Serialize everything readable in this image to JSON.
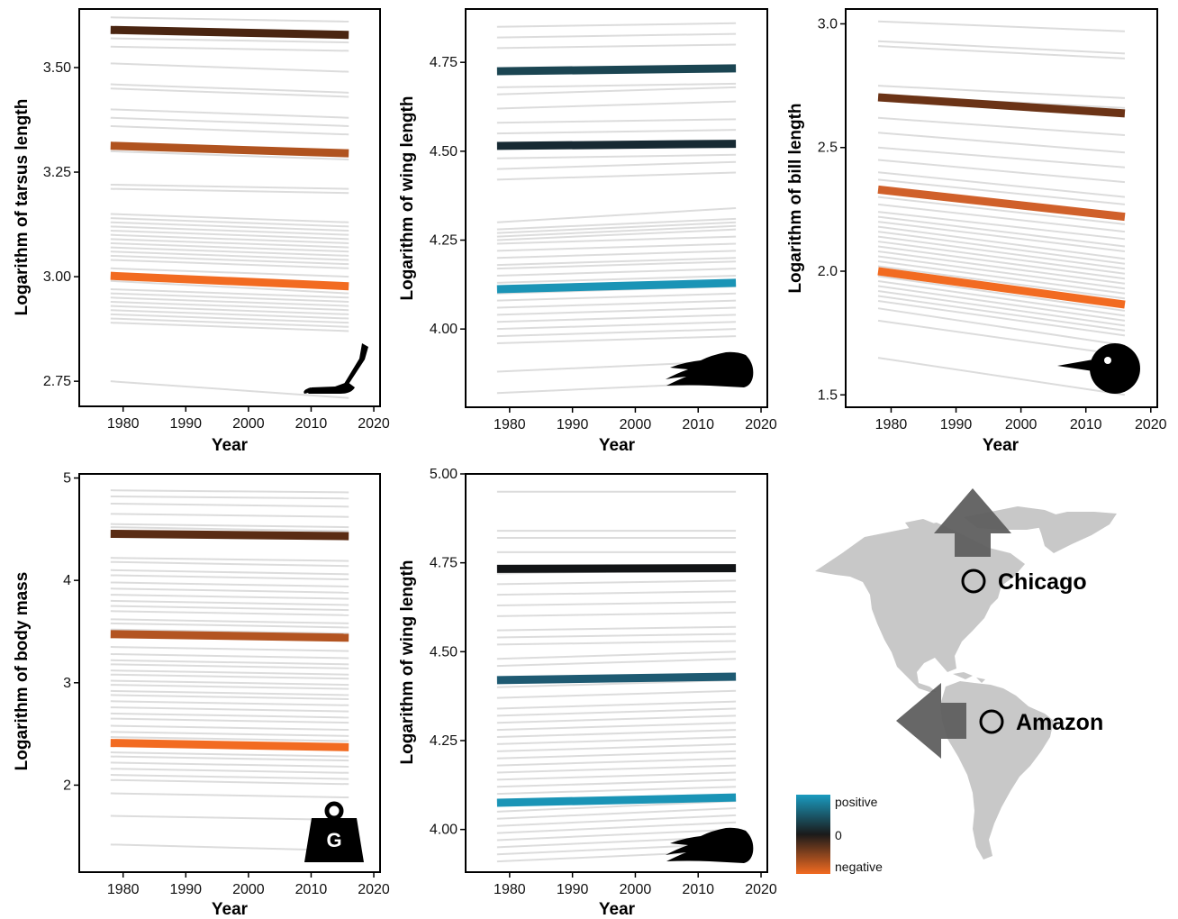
{
  "colors": {
    "background_line": "#dcdcdc",
    "positive": "#1a9bc0",
    "zero": "#1a1a1a",
    "negative": "#f26b21",
    "map_land": "#c8c8c8",
    "arrow": "#5f5f5f"
  },
  "chart_data": [
    {
      "id": "tarsus",
      "type": "line",
      "xlabel": "Year",
      "ylabel": "Logarithm of tarsus length",
      "xlim": [
        1973,
        2021
      ],
      "ylim": [
        2.69,
        3.64
      ],
      "xticks": [
        1980,
        1990,
        2000,
        2010,
        2020
      ],
      "yticks": [
        2.75,
        3.0,
        3.25,
        3.5
      ],
      "ytick_labels": [
        "2.75",
        "3.00",
        "3.25",
        "3.50"
      ],
      "x_range": [
        1978,
        2016
      ],
      "icon": "foot-icon",
      "background_series": {
        "start": [
          3.62,
          3.57,
          3.55,
          3.51,
          3.46,
          3.45,
          3.4,
          3.38,
          3.36,
          3.3,
          3.22,
          3.21,
          3.15,
          3.14,
          3.13,
          3.12,
          3.11,
          3.1,
          3.09,
          3.08,
          3.07,
          3.06,
          3.05,
          3.04,
          3.02,
          3.0,
          2.99,
          2.97,
          2.96,
          2.95,
          2.94,
          2.93,
          2.92,
          2.91,
          2.9,
          2.89,
          2.75
        ],
        "end": [
          3.61,
          3.56,
          3.54,
          3.49,
          3.44,
          3.43,
          3.38,
          3.36,
          3.34,
          3.28,
          3.21,
          3.2,
          3.13,
          3.12,
          3.11,
          3.1,
          3.09,
          3.08,
          3.07,
          3.06,
          3.05,
          3.04,
          3.03,
          3.02,
          3.0,
          2.98,
          2.96,
          2.95,
          2.94,
          2.93,
          2.92,
          2.91,
          2.9,
          2.89,
          2.88,
          2.87,
          2.71
        ]
      },
      "series": [
        {
          "start": 3.59,
          "end": 3.578,
          "color": "#4a2511"
        },
        {
          "start": 3.313,
          "end": 3.295,
          "color": "#b0531f"
        },
        {
          "start": 3.002,
          "end": 2.977,
          "color": "#f26b21"
        }
      ]
    },
    {
      "id": "wing-1",
      "type": "line",
      "xlabel": "Year",
      "ylabel": "Logarithm of wing length",
      "xlim": [
        1973,
        2021
      ],
      "ylim": [
        3.78,
        4.9
      ],
      "xticks": [
        1980,
        1990,
        2000,
        2010,
        2020
      ],
      "yticks": [
        4.0,
        4.25,
        4.5,
        4.75
      ],
      "ytick_labels": [
        "4.00",
        "4.25",
        "4.50",
        "4.75"
      ],
      "x_range": [
        1978,
        2016
      ],
      "icon": "wing-icon",
      "background_series": {
        "start": [
          4.85,
          4.82,
          4.79,
          4.68,
          4.66,
          4.62,
          4.58,
          4.55,
          4.48,
          4.45,
          4.42,
          4.3,
          4.28,
          4.27,
          4.26,
          4.25,
          4.24,
          4.22,
          4.2,
          4.18,
          4.17,
          4.15,
          4.13,
          4.1,
          4.08,
          4.06,
          4.04,
          4.02,
          4.0,
          3.98,
          3.96,
          3.88,
          3.82
        ],
        "end": [
          4.86,
          4.83,
          4.8,
          4.69,
          4.68,
          4.64,
          4.59,
          4.56,
          4.49,
          4.47,
          4.44,
          4.34,
          4.31,
          4.3,
          4.29,
          4.28,
          4.26,
          4.24,
          4.22,
          4.2,
          4.19,
          4.17,
          4.15,
          4.12,
          4.1,
          4.08,
          4.06,
          4.04,
          4.02,
          4.0,
          3.98,
          3.91,
          3.85
        ]
      },
      "series": [
        {
          "start": 4.725,
          "end": 4.733,
          "color": "#1b4552"
        },
        {
          "start": 4.515,
          "end": 4.521,
          "color": "#172a33"
        },
        {
          "start": 4.112,
          "end": 4.13,
          "color": "#1a94b6"
        }
      ]
    },
    {
      "id": "bill",
      "type": "line",
      "xlabel": "Year",
      "ylabel": "Logarithm of bill length",
      "xlim": [
        1973,
        2021
      ],
      "ylim": [
        1.45,
        3.06
      ],
      "xticks": [
        1980,
        1990,
        2000,
        2010,
        2020
      ],
      "yticks": [
        1.5,
        2.0,
        2.5,
        3.0
      ],
      "ytick_labels": [
        "1.5",
        "2.0",
        "2.5",
        "3.0"
      ],
      "x_range": [
        1978,
        2016
      ],
      "icon": "bird-head-icon",
      "background_series": {
        "start": [
          3.01,
          2.93,
          2.91,
          2.75,
          2.71,
          2.62,
          2.56,
          2.5,
          2.45,
          2.4,
          2.37,
          2.33,
          2.3,
          2.27,
          2.24,
          2.22,
          2.2,
          2.18,
          2.16,
          2.14,
          2.12,
          2.1,
          2.08,
          2.06,
          2.04,
          2.02,
          1.98,
          1.96,
          1.94,
          1.92,
          1.9,
          1.88,
          1.85,
          1.8,
          1.65
        ],
        "end": [
          2.97,
          2.88,
          2.86,
          2.7,
          2.66,
          2.55,
          2.48,
          2.42,
          2.36,
          2.3,
          2.27,
          2.22,
          2.19,
          2.16,
          2.13,
          2.1,
          2.08,
          2.05,
          2.03,
          2.01,
          1.99,
          1.97,
          1.95,
          1.93,
          1.91,
          1.89,
          1.84,
          1.82,
          1.8,
          1.78,
          1.76,
          1.74,
          1.7,
          1.66,
          1.5
        ]
      },
      "series": [
        {
          "start": 2.703,
          "end": 2.638,
          "color": "#6b3316"
        },
        {
          "start": 2.33,
          "end": 2.22,
          "color": "#d0602a"
        },
        {
          "start": 2.0,
          "end": 1.865,
          "color": "#f26b21"
        }
      ]
    },
    {
      "id": "mass",
      "type": "line",
      "xlabel": "Year",
      "ylabel": "Logarithm of body mass",
      "xlim": [
        1973,
        2021
      ],
      "ylim": [
        1.15,
        5.04
      ],
      "xticks": [
        1980,
        1990,
        2000,
        2010,
        2020
      ],
      "yticks": [
        2,
        3,
        4,
        5
      ],
      "ytick_labels": [
        "2",
        "3",
        "4",
        "5"
      ],
      "x_range": [
        1978,
        2016
      ],
      "icon": "weight-icon",
      "icon_label": "G",
      "background_series": {
        "start": [
          4.88,
          4.82,
          4.75,
          4.65,
          4.55,
          4.52,
          4.22,
          4.18,
          4.1,
          4.05,
          3.98,
          3.92,
          3.86,
          3.8,
          3.75,
          3.7,
          3.62,
          3.58,
          3.52,
          3.35,
          3.28,
          3.22,
          3.18,
          3.12,
          3.08,
          3.02,
          2.98,
          2.92,
          2.88,
          2.82,
          2.76,
          2.7,
          2.65,
          2.58,
          2.52,
          2.47,
          2.32,
          2.28,
          2.22,
          2.16,
          2.1,
          2.05,
          1.92,
          1.7,
          1.42
        ],
        "end": [
          4.86,
          4.8,
          4.72,
          4.62,
          4.52,
          4.48,
          4.19,
          4.14,
          4.06,
          4.01,
          3.94,
          3.88,
          3.82,
          3.76,
          3.71,
          3.66,
          3.58,
          3.54,
          3.48,
          3.31,
          3.24,
          3.18,
          3.14,
          3.08,
          3.04,
          2.98,
          2.94,
          2.88,
          2.84,
          2.78,
          2.72,
          2.66,
          2.61,
          2.54,
          2.48,
          2.43,
          2.28,
          2.24,
          2.18,
          2.12,
          2.06,
          2.01,
          1.88,
          1.66,
          1.36
        ]
      },
      "series": [
        {
          "start": 4.455,
          "end": 4.432,
          "color": "#5a2c14"
        },
        {
          "start": 3.475,
          "end": 3.44,
          "color": "#b35421"
        },
        {
          "start": 2.412,
          "end": 2.37,
          "color": "#f26b21"
        }
      ]
    },
    {
      "id": "wing-2",
      "type": "line",
      "xlabel": "Year",
      "ylabel": "Logarithm of wing length",
      "xlim": [
        1973,
        2021
      ],
      "ylim": [
        3.88,
        5.0
      ],
      "xticks": [
        1980,
        1990,
        2000,
        2010,
        2020
      ],
      "yticks": [
        4.0,
        4.25,
        4.5,
        4.75,
        5.0
      ],
      "ytick_labels": [
        "4.00",
        "4.25",
        "4.50",
        "4.75",
        "5.00"
      ],
      "x_range": [
        1978,
        2016
      ],
      "icon": "wing-icon",
      "background_series": {
        "start": [
          4.95,
          4.84,
          4.82,
          4.78,
          4.72,
          4.69,
          4.66,
          4.63,
          4.6,
          4.56,
          4.54,
          4.52,
          4.48,
          4.46,
          4.4,
          4.37,
          4.34,
          4.32,
          4.3,
          4.28,
          4.26,
          4.24,
          4.22,
          4.2,
          4.18,
          4.16,
          4.14,
          4.12,
          4.1,
          4.05,
          4.03,
          4.01,
          3.99,
          3.97,
          3.95,
          3.93,
          3.91
        ],
        "end": [
          4.95,
          4.84,
          4.82,
          4.78,
          4.73,
          4.7,
          4.67,
          4.64,
          4.61,
          4.57,
          4.55,
          4.53,
          4.5,
          4.48,
          4.42,
          4.39,
          4.36,
          4.34,
          4.32,
          4.3,
          4.28,
          4.26,
          4.24,
          4.22,
          4.2,
          4.18,
          4.16,
          4.14,
          4.12,
          4.08,
          4.06,
          4.04,
          4.02,
          4.0,
          3.98,
          3.96,
          3.94
        ]
      },
      "series": [
        {
          "start": 4.733,
          "end": 4.735,
          "color": "#121416"
        },
        {
          "start": 4.42,
          "end": 4.43,
          "color": "#1e5a72"
        },
        {
          "start": 4.075,
          "end": 4.09,
          "color": "#1a94b6"
        }
      ]
    }
  ],
  "map": {
    "labels": [
      "Chicago",
      "Amazon"
    ]
  },
  "legend": {
    "labels": [
      "positive",
      "0",
      "negative"
    ]
  }
}
